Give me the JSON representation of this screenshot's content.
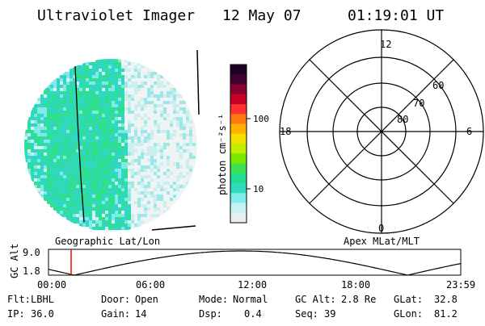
{
  "header": {
    "instrument": "Ultraviolet Imager",
    "date": "12 May 07",
    "time": "01:19:01 UT"
  },
  "colorbar": {
    "unit": "photon cm⁻²s⁻¹",
    "ticks": [
      "100",
      "10"
    ],
    "colors": [
      "#1a0022",
      "#400030",
      "#8a0030",
      "#c80026",
      "#ff3030",
      "#ff7a10",
      "#ffb000",
      "#f4e000",
      "#c4ec00",
      "#78e800",
      "#40e050",
      "#20e090",
      "#30dcc0",
      "#80ecec",
      "#c6f4f4",
      "#e6eeee"
    ]
  },
  "image_panel": {
    "left_label": "Geographic Lat/Lon"
  },
  "polar_grid": {
    "mlt_labels": {
      "top": "12",
      "bottom": "0",
      "left": "18",
      "right": "6"
    },
    "lat_labels": [
      "60",
      "70",
      "80"
    ],
    "right_label": "Apex MLat/MLT"
  },
  "altitude_plot": {
    "ylabel": "GC Alt",
    "yticks": [
      "9.0",
      "1.8"
    ],
    "xticks": [
      "00:00",
      "06:00",
      "12:00",
      "18:00",
      "23:59"
    ],
    "marker_time": "01:19",
    "marker_color": "#ff0000"
  },
  "info": [
    [
      {
        "label": "Flt:",
        "value": "LBHL"
      },
      {
        "label": "Door:",
        "value": "Open"
      },
      {
        "label": "Mode:",
        "value": "Normal"
      },
      {
        "label": "GC Alt:",
        "value": "2.8 Re"
      },
      {
        "label": "GLat:",
        "value": "32.8"
      }
    ],
    [
      {
        "label": "IP:",
        "value": "36.0"
      },
      {
        "label": "Gain:",
        "value": "14"
      },
      {
        "label": "Dsp:",
        "value": "0.4"
      },
      {
        "label": "Seq:",
        "value": "39"
      },
      {
        "label": "GLon:",
        "value": "81.2"
      }
    ]
  ]
}
